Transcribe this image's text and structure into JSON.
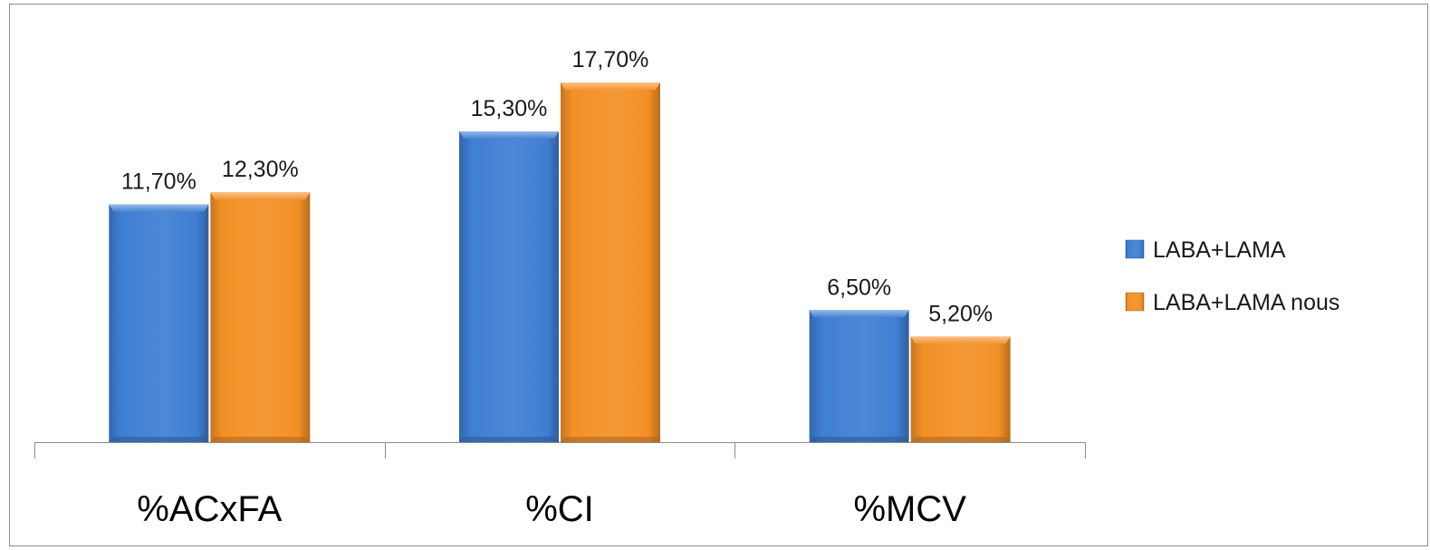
{
  "chart_data": {
    "type": "bar",
    "title": "",
    "xlabel": "",
    "ylabel": "",
    "categories": [
      "%ACxFA",
      "%CI",
      "%MCV"
    ],
    "series": [
      {
        "name": "LABA+LAMA",
        "values": [
          11.7,
          15.3,
          6.5
        ],
        "labels": [
          "11,70%",
          "15,30%",
          "6,50%"
        ],
        "color": "#3E7ED2"
      },
      {
        "name": "LABA+LAMA nous",
        "values": [
          12.3,
          17.7,
          5.2
        ],
        "labels": [
          "12,30%",
          "17,70%",
          "5,20%"
        ],
        "color": "#F39026"
      }
    ],
    "ylim": [
      0,
      22
    ],
    "grid": false,
    "y_axis_visible": false,
    "legend_position": "right",
    "bar_style": "3d-bevel"
  }
}
